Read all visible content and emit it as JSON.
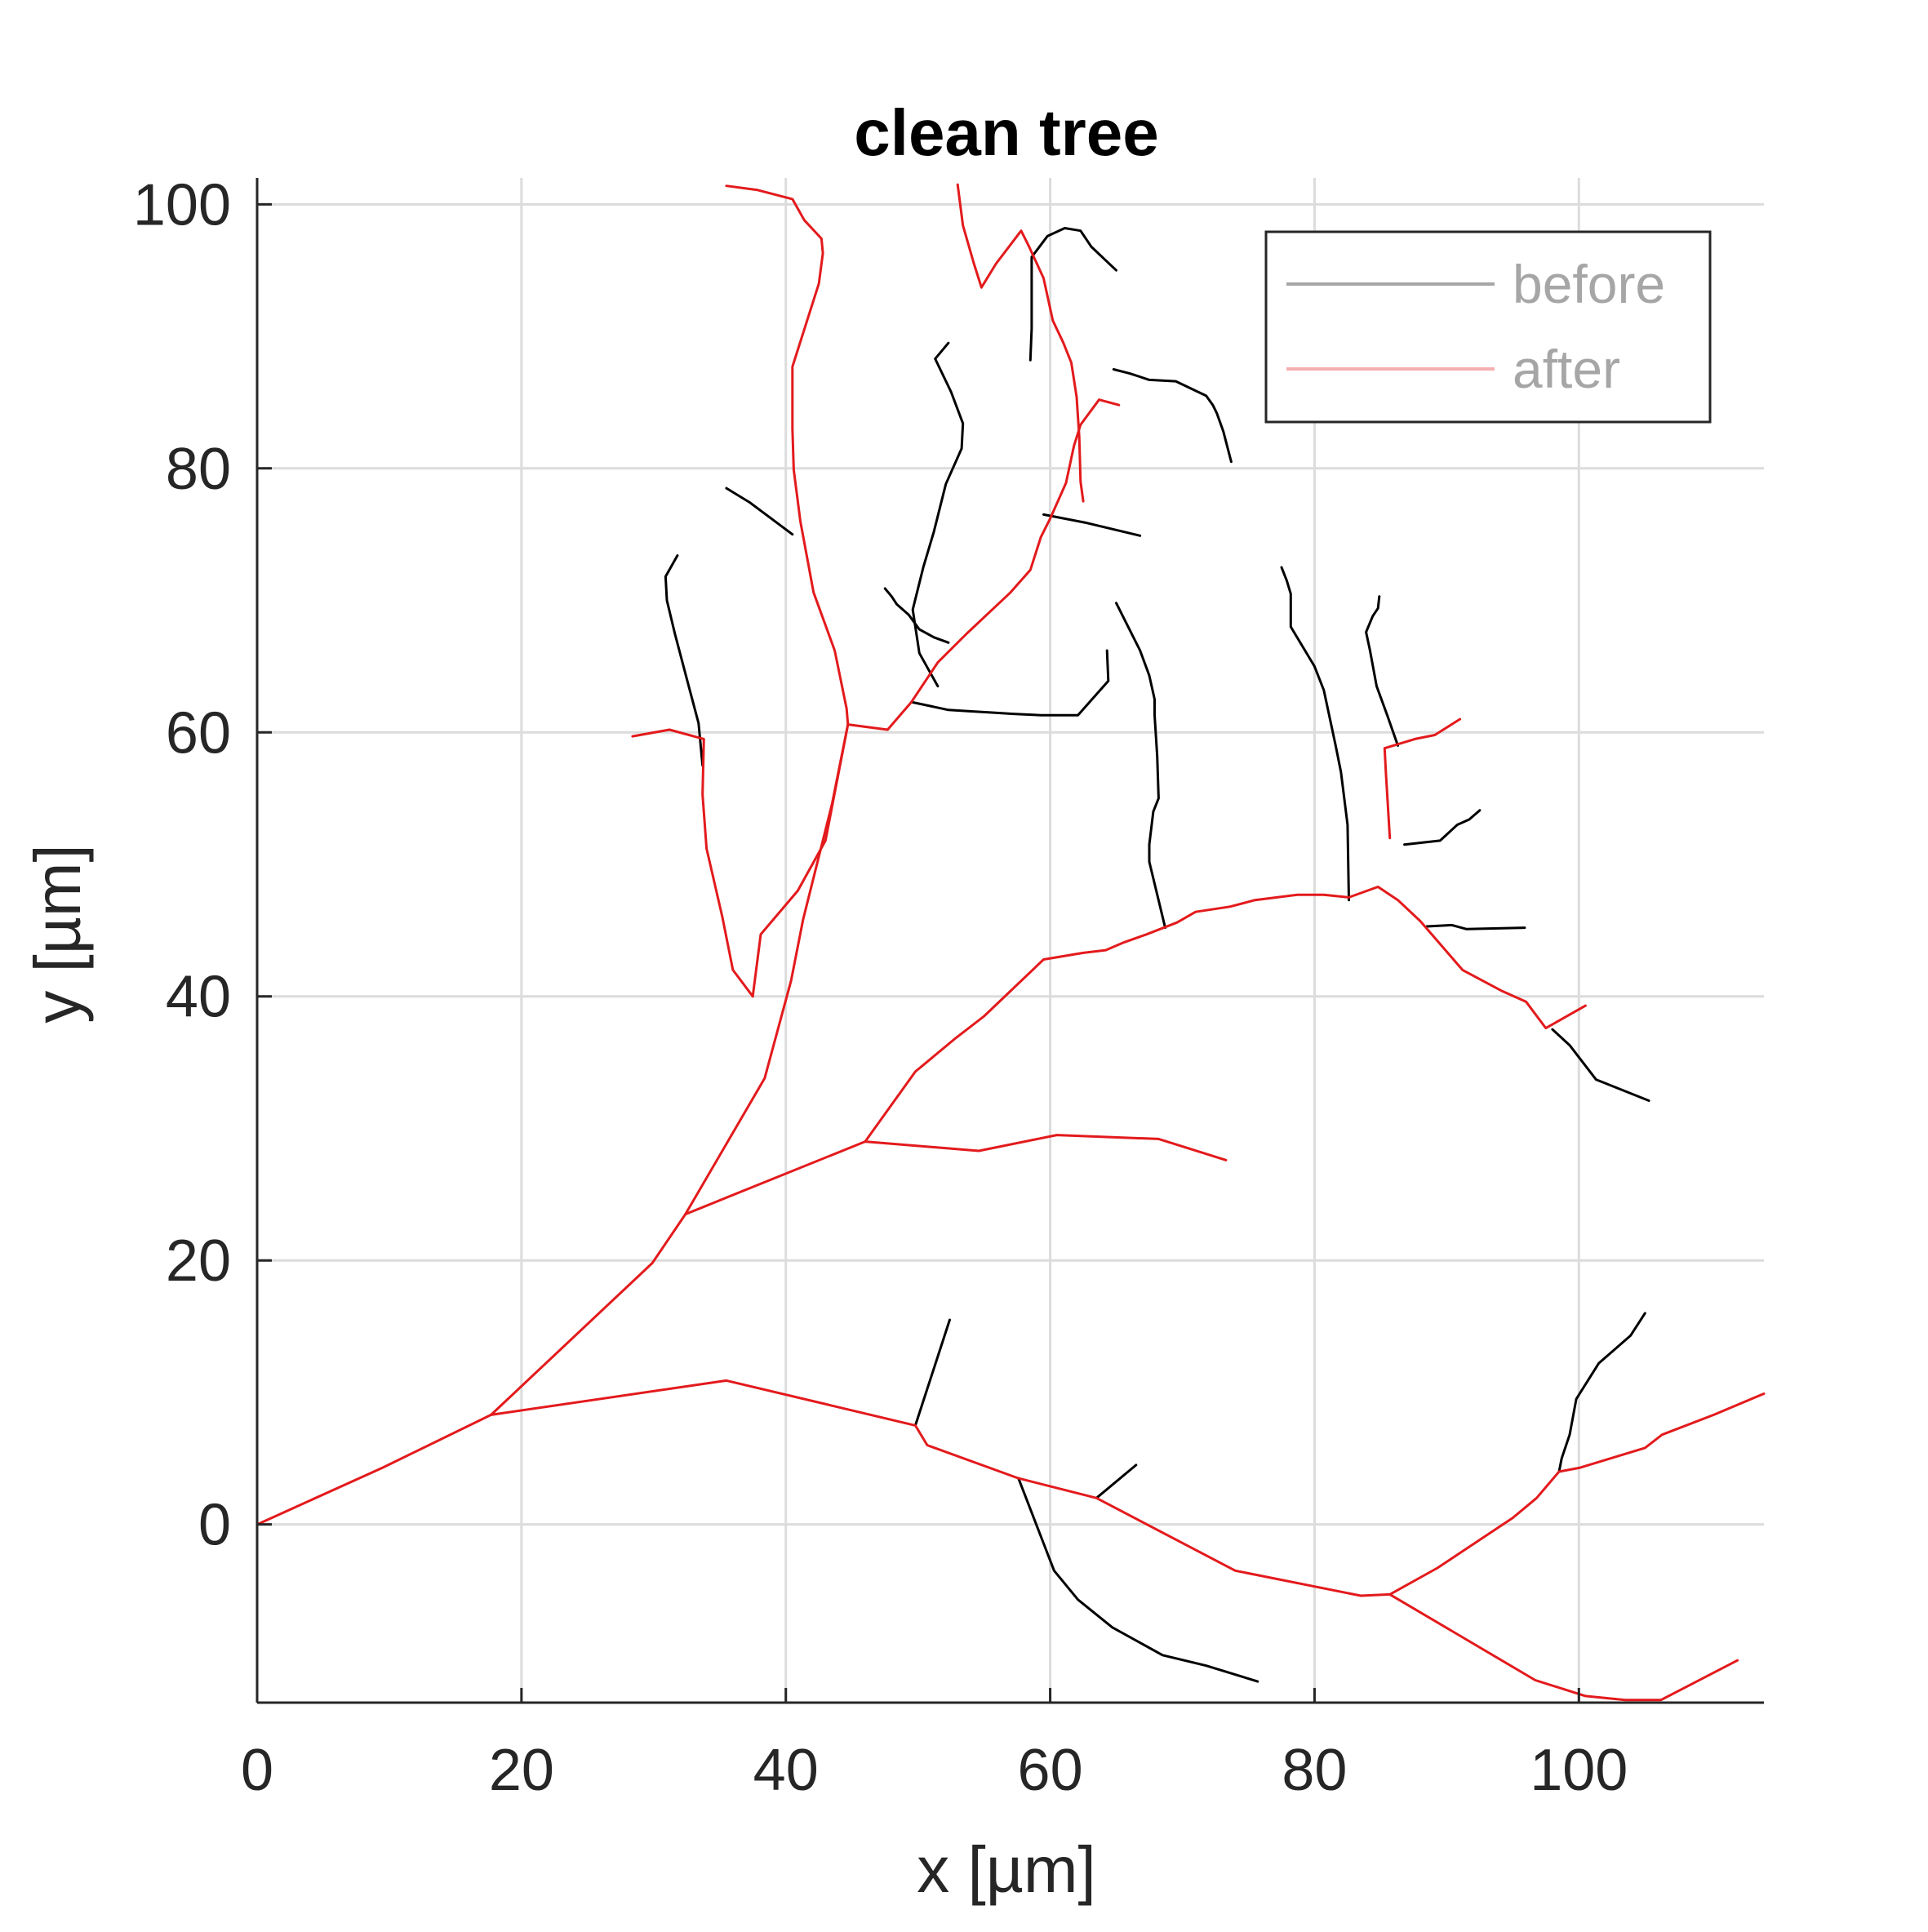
{
  "chart_data": {
    "type": "line",
    "title": "clean tree",
    "xlabel": "x [µm]",
    "ylabel": "y [µm]",
    "xlim": [
      0,
      114
    ],
    "ylim": [
      -13.5,
      102
    ],
    "xticks": [
      0,
      20,
      40,
      60,
      80,
      100
    ],
    "yticks": [
      0,
      20,
      40,
      60,
      80,
      100
    ],
    "grid": true,
    "legend_position": "top-right",
    "legend": [
      {
        "label": "before",
        "color": "#000000"
      },
      {
        "label": "after",
        "color": "#e31a1c"
      }
    ],
    "series": [
      {
        "name": "before",
        "color": "#000000",
        "segments": [
          [
            [
              63.5,
              2
            ],
            [
              66.5,
              4.5
            ]
          ],
          [
            [
              49.8,
              7.5
            ],
            [
              52.4,
              15.5
            ]
          ],
          [
            [
              57.6,
              3.5
            ],
            [
              60.3,
              -3.5
            ],
            [
              62.1,
              -5.7
            ],
            [
              64.7,
              -7.8
            ],
            [
              68.5,
              -9.9
            ],
            [
              71.8,
              -10.7
            ],
            [
              75.7,
              -11.9
            ]
          ],
          [
            [
              98.5,
              4
            ],
            [
              98.7,
              5
            ],
            [
              99.3,
              6.8
            ],
            [
              99.8,
              9.5
            ],
            [
              101.5,
              12.2
            ],
            [
              103.9,
              14.3
            ],
            [
              105.0,
              16
            ]
          ],
          [
            [
              88.5,
              45.3
            ],
            [
              90.4,
              45.4
            ],
            [
              91.5,
              45.1
            ],
            [
              95.9,
              45.2
            ]
          ],
          [
            [
              86.8,
              51.5
            ],
            [
              89.5,
              51.8
            ],
            [
              90.8,
              53
            ],
            [
              91.7,
              53.4
            ],
            [
              92.5,
              54.1
            ]
          ],
          [
            [
              86.3,
              59
            ],
            [
              85.5,
              61.3
            ],
            [
              84.7,
              63.5
            ],
            [
              84.2,
              66.2
            ],
            [
              83.9,
              67.6
            ],
            [
              84.4,
              68.8
            ],
            [
              84.8,
              69.4
            ],
            [
              84.9,
              70.3
            ]
          ],
          [
            [
              82.6,
              47.3
            ],
            [
              82.5,
              53
            ],
            [
              82.0,
              57
            ],
            [
              81.6,
              59
            ],
            [
              80.7,
              63.2
            ],
            [
              80.0,
              65
            ],
            [
              78.2,
              68
            ],
            [
              78.2,
              70.5
            ],
            [
              77.9,
              71.5
            ],
            [
              77.5,
              72.5
            ]
          ],
          [
            [
              68.7,
              45.2
            ],
            [
              67.5,
              50.2
            ],
            [
              67.5,
              51.5
            ],
            [
              67.8,
              54
            ],
            [
              68.2,
              55
            ],
            [
              68.1,
              58.2
            ],
            [
              67.9,
              61.3
            ],
            [
              67.9,
              62.5
            ],
            [
              67.5,
              64.3
            ],
            [
              66.8,
              66.2
            ],
            [
              66.0,
              67.8
            ],
            [
              65.0,
              69.8
            ]
          ],
          [
            [
              59.5,
              76.5
            ],
            [
              62.6,
              75.9
            ],
            [
              66.8,
              74.9
            ]
          ],
          [
            [
              64.8,
              87.5
            ],
            [
              66.0,
              87.2
            ],
            [
              67.5,
              86.7
            ],
            [
              69.5,
              86.6
            ],
            [
              71.8,
              85.5
            ],
            [
              72.3,
              84.8
            ],
            [
              72.6,
              84.2
            ],
            [
              73.1,
              82.8
            ],
            [
              73.7,
              80.5
            ]
          ],
          [
            [
              52.3,
              66.8
            ],
            [
              51.2,
              67.2
            ],
            [
              50.1,
              67.8
            ],
            [
              49.3,
              68.9
            ],
            [
              48.4,
              69.7
            ],
            [
              48.0,
              70.3
            ],
            [
              47.5,
              70.9
            ]
          ],
          [
            [
              49.5,
              62.3
            ],
            [
              52.3,
              61.7
            ],
            [
              53.9,
              61.6
            ],
            [
              55.6,
              61.5
            ],
            [
              57.2,
              61.4
            ],
            [
              59.3,
              61.3
            ],
            [
              62.1,
              61.3
            ],
            [
              64.4,
              63.9
            ],
            [
              64.3,
              66.2
            ]
          ],
          [
            [
              51.5,
              63.5
            ],
            [
              50.1,
              66
            ],
            [
              49.6,
              69.3
            ],
            [
              50.4,
              72.5
            ],
            [
              51.2,
              75.2
            ],
            [
              52.1,
              78.8
            ],
            [
              53.3,
              81.5
            ],
            [
              53.4,
              83.4
            ],
            [
              52.5,
              85.8
            ],
            [
              51.3,
              88.3
            ],
            [
              52.3,
              89.5
            ]
          ],
          [
            [
              33.7,
              57.5
            ],
            [
              33.4,
              60.7
            ],
            [
              32.6,
              63.7
            ],
            [
              31.6,
              67.5
            ],
            [
              31.0,
              70
            ],
            [
              30.9,
              71.8
            ],
            [
              31.8,
              73.4
            ]
          ],
          [
            [
              40.5,
              75
            ],
            [
              37.3,
              77.4
            ],
            [
              35.5,
              78.5
            ]
          ],
          [
            [
              58.5,
              88.2
            ],
            [
              58.6,
              90.6
            ],
            [
              58.6,
              94.4
            ],
            [
              58.6,
              96.0
            ],
            [
              59.8,
              97.6
            ],
            [
              61.1,
              98.2
            ],
            [
              62.3,
              98.0
            ],
            [
              63.1,
              96.8
            ],
            [
              65.0,
              95.0
            ]
          ],
          [
            [
              98.0,
              37.5
            ],
            [
              99.3,
              36.3
            ],
            [
              101.3,
              33.7
            ],
            [
              105.3,
              32.1
            ]
          ]
        ]
      },
      {
        "name": "after",
        "color": "#e31a1c",
        "segments": [
          [
            [
              0,
              0
            ],
            [
              9.5,
              4.3
            ],
            [
              17.7,
              8.3
            ],
            [
              29.9,
              19.8
            ],
            [
              32.4,
              23.5
            ],
            [
              38.4,
              33.8
            ],
            [
              40.4,
              41.2
            ],
            [
              41.3,
              45.8
            ],
            [
              43.5,
              54.6
            ],
            [
              44.7,
              60.6
            ],
            [
              44.6,
              61.8
            ],
            [
              43.7,
              66.2
            ],
            [
              42.1,
              70.6
            ],
            [
              41.1,
              76
            ],
            [
              40.6,
              79.9
            ],
            [
              40.5,
              83
            ],
            [
              40.5,
              87.7
            ],
            [
              42.5,
              94.0
            ],
            [
              42.8,
              96.3
            ],
            [
              42.7,
              97.4
            ],
            [
              41.4,
              98.8
            ],
            [
              40.5,
              100.4
            ],
            [
              37.8,
              101.1
            ],
            [
              35.5,
              101.4
            ]
          ],
          [
            [
              17.7,
              8.3
            ],
            [
              35.5,
              10.9
            ],
            [
              49.8,
              7.5
            ],
            [
              50.7,
              6.0
            ],
            [
              57.6,
              3.5
            ],
            [
              63.5,
              2
            ],
            [
              74.0,
              -3.5
            ],
            [
              83.5,
              -5.4
            ],
            [
              85.7,
              -5.3
            ],
            [
              89.3,
              -3.3
            ],
            [
              95.0,
              0.5
            ],
            [
              96.8,
              2
            ],
            [
              98.5,
              4
            ],
            [
              100.1,
              4.3
            ],
            [
              105.0,
              5.8
            ],
            [
              106.3,
              6.8
            ],
            [
              110.2,
              8.3
            ],
            [
              114.0,
              9.9
            ]
          ],
          [
            [
              85.7,
              -5.3
            ],
            [
              96.7,
              -11.8
            ],
            [
              100.5,
              -13.0
            ],
            [
              103.5,
              -13.3
            ],
            [
              106.2,
              -13.3
            ],
            [
              112.0,
              -10.3
            ]
          ],
          [
            [
              32.4,
              23.5
            ],
            [
              46.0,
              29.0
            ],
            [
              54.6,
              28.3
            ],
            [
              60.5,
              29.5
            ],
            [
              68.2,
              29.2
            ],
            [
              73.3,
              27.6
            ]
          ],
          [
            [
              46.0,
              29.0
            ],
            [
              49.8,
              34.3
            ],
            [
              52.8,
              36.8
            ],
            [
              55.0,
              38.5
            ],
            [
              59.5,
              42.8
            ],
            [
              62.5,
              43.3
            ],
            [
              64.2,
              43.5
            ],
            [
              65.6,
              44.1
            ],
            [
              67.3,
              44.7
            ],
            [
              69.6,
              45.6
            ],
            [
              71.0,
              46.4
            ],
            [
              73.6,
              46.8
            ],
            [
              75.5,
              47.3
            ],
            [
              78.7,
              47.7
            ],
            [
              80.7,
              47.7
            ],
            [
              82.6,
              47.5
            ],
            [
              84.8,
              48.3
            ],
            [
              86.3,
              47.3
            ],
            [
              88.0,
              45.7
            ],
            [
              91.2,
              42.0
            ],
            [
              94.2,
              40.4
            ],
            [
              96.0,
              39.6
            ],
            [
              97.5,
              37.6
            ],
            [
              100.5,
              39.3
            ]
          ],
          [
            [
              85.7,
              52.0
            ],
            [
              85.4,
              56.9
            ],
            [
              85.3,
              58.8
            ],
            [
              87.6,
              59.5
            ],
            [
              89.1,
              59.8
            ],
            [
              91.0,
              61.0
            ]
          ],
          [
            [
              37.5,
              40.0
            ],
            [
              38.1,
              44.7
            ],
            [
              40.9,
              48.0
            ],
            [
              43.0,
              51.8
            ],
            [
              44.7,
              60.6
            ]
          ],
          [
            [
              37.5,
              40.0
            ],
            [
              36.0,
              42.0
            ],
            [
              35.2,
              46.0
            ],
            [
              34.0,
              51.2
            ],
            [
              33.7,
              55.3
            ],
            [
              33.8,
              59.5
            ],
            [
              31.2,
              60.2
            ],
            [
              28.4,
              59.7
            ]
          ],
          [
            [
              44.7,
              60.6
            ],
            [
              47.7,
              60.2
            ],
            [
              49.5,
              62.3
            ],
            [
              51.5,
              65.3
            ],
            [
              53.7,
              67.5
            ],
            [
              57.0,
              70.6
            ],
            [
              58.5,
              72.3
            ],
            [
              59.3,
              74.8
            ],
            [
              60.0,
              76.2
            ],
            [
              61.2,
              78.9
            ],
            [
              61.8,
              81.7
            ],
            [
              62.3,
              83.3
            ],
            [
              63.7,
              85.2
            ],
            [
              65.2,
              84.8
            ]
          ],
          [
            [
              62.5,
              77.5
            ],
            [
              62.3,
              79.0
            ],
            [
              62.2,
              82.4
            ],
            [
              62.0,
              85.4
            ],
            [
              61.6,
              88.0
            ],
            [
              61.0,
              89.5
            ],
            [
              60.2,
              91.2
            ],
            [
              59.5,
              94.4
            ],
            [
              58.4,
              96.8
            ],
            [
              57.8,
              98.0
            ],
            [
              55.9,
              95.5
            ],
            [
              54.8,
              93.7
            ],
            [
              54.2,
              95.6
            ],
            [
              53.4,
              98.4
            ],
            [
              53.0,
              101.5
            ]
          ]
        ]
      }
    ]
  }
}
